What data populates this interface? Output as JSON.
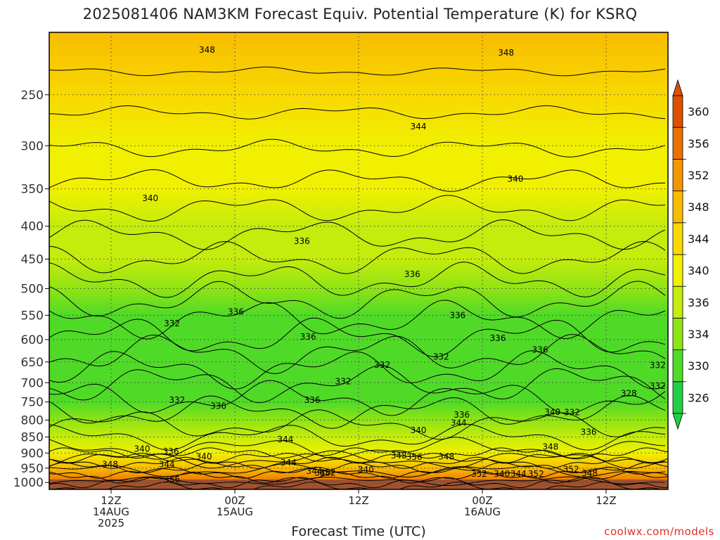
{
  "title": "2025081406 NAM3KM Forecast Equiv. Potential Temperature (K) for KSRQ",
  "credit": "coolwx.com/models",
  "chart_data": {
    "type": "heatmap",
    "title": "2025081406 NAM3KM Forecast Equiv. Potential Temperature (K) for KSRQ",
    "xlabel": "Forecast Time (UTC)",
    "ylabel": "",
    "y_ticks": [
      250,
      300,
      350,
      400,
      450,
      500,
      550,
      600,
      650,
      700,
      750,
      800,
      850,
      900,
      950,
      1000
    ],
    "x_ticks": [
      {
        "lines": [
          "12Z",
          "14AUG",
          "2025"
        ],
        "hour": 6
      },
      {
        "lines": [
          "00Z",
          "15AUG"
        ],
        "hour": 18
      },
      {
        "lines": [
          "12Z"
        ],
        "hour": 30
      },
      {
        "lines": [
          "00Z",
          "16AUG"
        ],
        "hour": 42
      },
      {
        "lines": [
          "12Z"
        ],
        "hour": 54
      }
    ],
    "x_range_hours": [
      0,
      60
    ],
    "y_range_hpa": [
      200,
      1025
    ],
    "colorbar": {
      "levels": [
        326,
        330,
        334,
        336,
        340,
        344,
        348,
        352,
        356,
        360
      ],
      "colors": [
        "#22d046",
        "#50da28",
        "#8fe414",
        "#c4ec0c",
        "#f0f000",
        "#f8d800",
        "#f8bc00",
        "#f49600",
        "#ec7000",
        "#dc5000"
      ]
    },
    "profile": [
      {
        "p": 200,
        "theta_e": 348
      },
      {
        "p": 250,
        "theta_e": 346
      },
      {
        "p": 300,
        "theta_e": 343
      },
      {
        "p": 350,
        "theta_e": 341
      },
      {
        "p": 400,
        "theta_e": 338
      },
      {
        "p": 450,
        "theta_e": 336
      },
      {
        "p": 500,
        "theta_e": 334
      },
      {
        "p": 550,
        "theta_e": 333
      },
      {
        "p": 600,
        "theta_e": 332
      },
      {
        "p": 650,
        "theta_e": 332
      },
      {
        "p": 700,
        "theta_e": 331
      },
      {
        "p": 750,
        "theta_e": 333
      },
      {
        "p": 800,
        "theta_e": 335
      },
      {
        "p": 850,
        "theta_e": 338
      },
      {
        "p": 900,
        "theta_e": 343
      },
      {
        "p": 950,
        "theta_e": 350
      },
      {
        "p": 1000,
        "theta_e": 356
      },
      {
        "p": 1025,
        "theta_e": 358
      }
    ],
    "contour_labels": [
      {
        "text": "348",
        "hour": 15.3,
        "p": 213
      },
      {
        "text": "348",
        "hour": 44.3,
        "p": 215
      },
      {
        "text": "344",
        "hour": 35.8,
        "p": 280
      },
      {
        "text": "340",
        "hour": 9.8,
        "p": 362
      },
      {
        "text": "340",
        "hour": 45.2,
        "p": 338
      },
      {
        "text": "336",
        "hour": 24.5,
        "p": 422
      },
      {
        "text": "336",
        "hour": 35.2,
        "p": 475
      },
      {
        "text": "336",
        "hour": 18.1,
        "p": 543
      },
      {
        "text": "336",
        "hour": 39.6,
        "p": 550
      },
      {
        "text": "336",
        "hour": 25.1,
        "p": 594
      },
      {
        "text": "336",
        "hour": 43.5,
        "p": 597
      },
      {
        "text": "336",
        "hour": 47.6,
        "p": 622
      },
      {
        "text": "332",
        "hour": 11.9,
        "p": 566
      },
      {
        "text": "332",
        "hour": 38.0,
        "p": 638
      },
      {
        "text": "332",
        "hour": 32.3,
        "p": 657
      },
      {
        "text": "332",
        "hour": 28.5,
        "p": 697
      },
      {
        "text": "332",
        "hour": 59.0,
        "p": 658
      },
      {
        "text": "332",
        "hour": 59.0,
        "p": 708
      },
      {
        "text": "332",
        "hour": 12.4,
        "p": 745
      },
      {
        "text": "332",
        "hour": 50.7,
        "p": 778
      },
      {
        "text": "328",
        "hour": 56.2,
        "p": 727
      },
      {
        "text": "336",
        "hour": 16.4,
        "p": 761
      },
      {
        "text": "336",
        "hour": 25.5,
        "p": 745
      },
      {
        "text": "336",
        "hour": 40.0,
        "p": 785
      },
      {
        "text": "336",
        "hour": 52.3,
        "p": 835
      },
      {
        "text": "340",
        "hour": 48.8,
        "p": 777
      },
      {
        "text": "340",
        "hour": 35.8,
        "p": 830
      },
      {
        "text": "344",
        "hour": 39.7,
        "p": 808
      },
      {
        "text": "344",
        "hour": 22.9,
        "p": 857
      },
      {
        "text": "344",
        "hour": 11.4,
        "p": 937
      },
      {
        "text": "344",
        "hour": 23.2,
        "p": 932
      },
      {
        "text": "344",
        "hour": 25.7,
        "p": 960
      },
      {
        "text": "348",
        "hour": 5.9,
        "p": 937
      },
      {
        "text": "348",
        "hour": 26.5,
        "p": 966
      },
      {
        "text": "348",
        "hour": 33.9,
        "p": 908
      },
      {
        "text": "348",
        "hour": 38.5,
        "p": 912
      },
      {
        "text": "348",
        "hour": 48.6,
        "p": 880
      },
      {
        "text": "348",
        "hour": 52.4,
        "p": 968
      },
      {
        "text": "340",
        "hour": 9.0,
        "p": 887
      },
      {
        "text": "336",
        "hour": 11.8,
        "p": 895
      },
      {
        "text": "340",
        "hour": 15.0,
        "p": 912
      },
      {
        "text": "340",
        "hour": 30.7,
        "p": 955
      },
      {
        "text": "340",
        "hour": 43.9,
        "p": 970
      },
      {
        "text": "344",
        "hour": 45.5,
        "p": 970
      },
      {
        "text": "352",
        "hour": 27.0,
        "p": 966
      },
      {
        "text": "352",
        "hour": 41.7,
        "p": 970
      },
      {
        "text": "352",
        "hour": 47.2,
        "p": 970
      },
      {
        "text": "352",
        "hour": 50.6,
        "p": 954
      },
      {
        "text": "356",
        "hour": 11.9,
        "p": 990
      },
      {
        "text": "356",
        "hour": 35.4,
        "p": 913
      }
    ]
  }
}
